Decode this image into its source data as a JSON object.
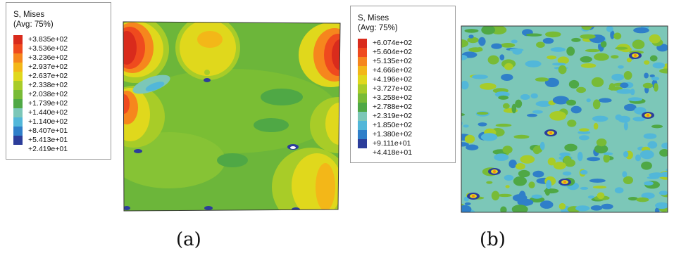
{
  "panel_a": {
    "legend_title": [
      "S, Mises",
      "(Avg: 75%)"
    ],
    "legend_values": [
      "+3.835e+02",
      "+3.536e+02",
      "+3.236e+02",
      "+2.937e+02",
      "+2.637e+02",
      "+2.338e+02",
      "+2.038e+02",
      "+1.739e+02",
      "+1.440e+02",
      "+1.140e+02",
      "+8.407e+01",
      "+5.413e+01",
      "+2.419e+01"
    ],
    "caption": "(a)"
  },
  "panel_b": {
    "legend_title": [
      "S, Mises",
      "(Avg: 75%)"
    ],
    "legend_values": [
      "+6.074e+02",
      "+5.604e+02",
      "+5.135e+02",
      "+4.666e+02",
      "+4.196e+02",
      "+3.727e+02",
      "+3.258e+02",
      "+2.788e+02",
      "+2.319e+02",
      "+1.850e+02",
      "+1.380e+02",
      "+9.111e+01",
      "+4.418e+01"
    ],
    "caption": "(b)"
  },
  "colors": {
    "scale": [
      "#d92b1c",
      "#ef4a1e",
      "#f6861d",
      "#f3b718",
      "#e0d81c",
      "#a8cc28",
      "#78bb36",
      "#4fa845",
      "#7cc7b8",
      "#52b7d9",
      "#2f7fc9",
      "#2c3d9a",
      "#3a1f7f"
    ],
    "border": "#9a9a9a"
  }
}
